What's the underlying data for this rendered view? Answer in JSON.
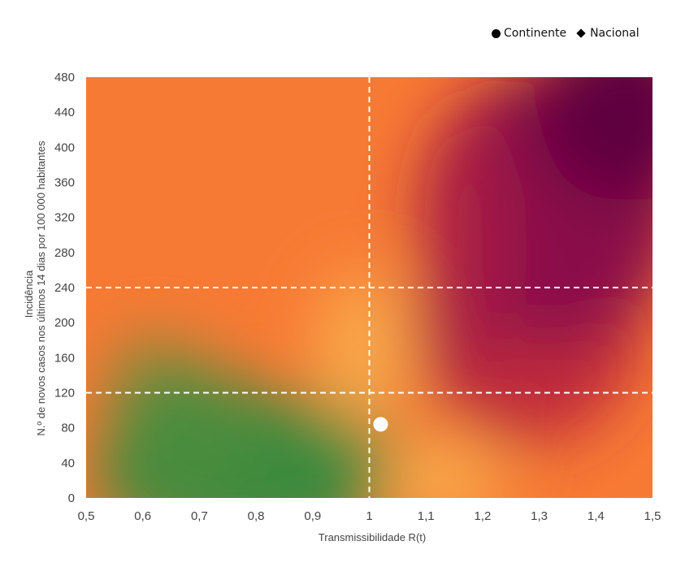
{
  "legend": {
    "continente": "Continente",
    "nacional": "Nacional"
  },
  "chart_data": {
    "type": "scatter",
    "xlabel": "Transmissibilidade R(t)",
    "ylabel_line1": "Incidência",
    "ylabel_line2": "N.º de novos casos nos últimos 14 dias por 100 000 habitantes",
    "xlim": [
      0.5,
      1.5
    ],
    "ylim": [
      0,
      480
    ],
    "x_ticks": [
      "0,5",
      "0,6",
      "0,7",
      "0,8",
      "0,9",
      "1",
      "1,1",
      "1,2",
      "1,3",
      "1,4",
      "1,5"
    ],
    "y_ticks": [
      "0",
      "40",
      "80",
      "120",
      "160",
      "200",
      "240",
      "280",
      "320",
      "360",
      "400",
      "440",
      "480"
    ],
    "reference_lines": {
      "x": [
        1
      ],
      "y": [
        120,
        240
      ]
    },
    "background": "risk heatmap gradient: green (low R, low incidence) to orange to dark magenta (high R, high incidence)",
    "colors": {
      "green": "#3a8a3e",
      "yellow": "#f9a848",
      "orange": "#f77a34",
      "red": "#c02a3a",
      "magenta": "#8a0f4a",
      "dark": "#5e0040"
    },
    "series": [
      {
        "name": "Continente",
        "marker": "circle",
        "points": [
          {
            "x": 1.02,
            "y": 84
          }
        ]
      }
    ]
  }
}
